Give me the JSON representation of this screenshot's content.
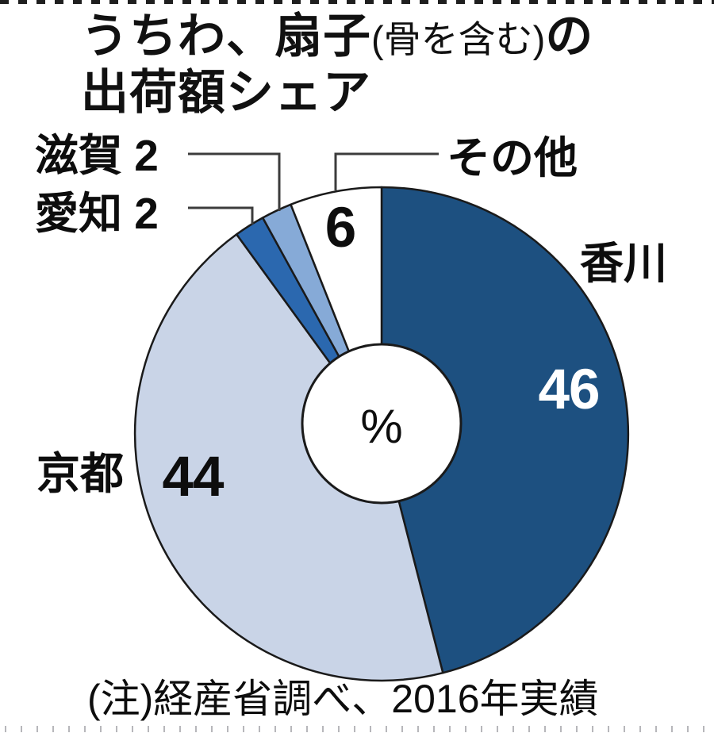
{
  "title": {
    "line1_main": "うちわ、扇子",
    "line1_paren": "(骨を含む)",
    "line1_tail": "の",
    "line2": "出荷額シェア"
  },
  "note": "(注)経産省調べ、2016年実績",
  "center_unit": "%",
  "callouts": {
    "shiga": "滋賀 2",
    "aichi": "愛知 2",
    "others": "その他"
  },
  "region_labels": {
    "kagawa": "香川",
    "kyoto": "京都"
  },
  "slice_value_labels": {
    "kagawa": "46",
    "kyoto": "44",
    "others": "6"
  },
  "chart_data": {
    "type": "pie",
    "subtype": "donut",
    "title": "うちわ、扇子(骨を含む)の出荷額シェア",
    "unit": "%",
    "note": "(注)経産省調べ、2016年実績",
    "start_angle_deg": 0,
    "direction": "clockwise",
    "categories": [
      "香川",
      "京都",
      "愛知",
      "滋賀",
      "その他"
    ],
    "values": [
      46,
      44,
      2,
      2,
      6
    ],
    "slices": [
      {
        "id": "kagawa",
        "label": "香川",
        "value": 46,
        "color": "#1d5080",
        "value_label_color": "#ffffff"
      },
      {
        "id": "kyoto",
        "label": "京都",
        "value": 44,
        "color": "#c9d4e7",
        "value_label_color": "#0d0d0d"
      },
      {
        "id": "aichi",
        "label": "愛知",
        "value": 2,
        "color": "#2b68af",
        "value_label_color": "#0d0d0d"
      },
      {
        "id": "shiga",
        "label": "滋賀",
        "value": 2,
        "color": "#86aad7",
        "value_label_color": "#0d0d0d"
      },
      {
        "id": "others",
        "label": "その他",
        "value": 6,
        "color": "#ffffff",
        "value_label_color": "#0d0d0d"
      }
    ],
    "outline_color": "#1a1a1a",
    "leader_line_color": "#3c3c3c"
  }
}
